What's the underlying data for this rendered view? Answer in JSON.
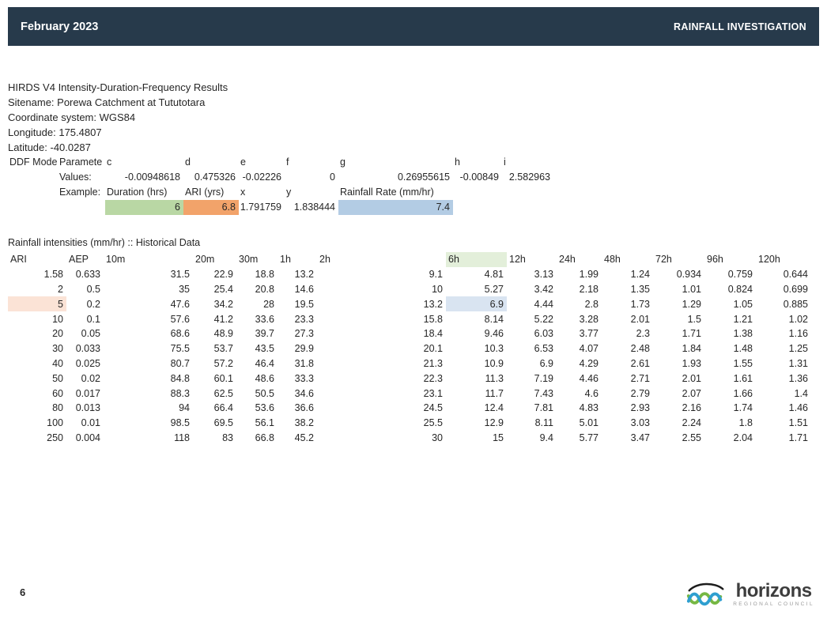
{
  "header": {
    "date": "February 2023",
    "title": "RAINFALL INVESTIGATION"
  },
  "info": {
    "lines": [
      "HIRDS V4 Intensity-Duration-Frequency Results",
      "Sitename: Porewa Catchment at Tututotara",
      "Coordinate system: WGS84",
      "Longitude: 175.4807",
      "Latitude: -40.0287"
    ]
  },
  "ddf": {
    "model_label": "DDF Mode",
    "parameter_label": "Paramete",
    "param_letters": [
      "c",
      "d",
      "e",
      "f",
      "g",
      "h",
      "i"
    ],
    "values_label": "Values:",
    "values": [
      "-0.00948618",
      "0.475326",
      "-0.02226",
      "0",
      "0.26955615",
      "-0.00849",
      "2.582963"
    ],
    "example_label": "Example:",
    "example_headers": [
      "Duration (hrs)",
      "ARI (yrs)",
      "x",
      "y",
      "Rainfall Rate (mm/hr)"
    ],
    "example": {
      "duration": "6",
      "ari": "6.8",
      "x": "1.791759",
      "y": "1.838444",
      "rate": "7.4"
    }
  },
  "table": {
    "title": "Rainfall intensities (mm/hr) :: Historical Data",
    "columns": [
      "ARI",
      "AEP",
      "10m",
      "20m",
      "30m",
      "1h",
      "2h",
      "6h",
      "12h",
      "24h",
      "48h",
      "72h",
      "96h",
      "120h"
    ],
    "rows": [
      [
        "1.58",
        "0.633",
        "31.5",
        "22.9",
        "18.8",
        "13.2",
        "9.1",
        "4.81",
        "3.13",
        "1.99",
        "1.24",
        "0.934",
        "0.759",
        "0.644"
      ],
      [
        "2",
        "0.5",
        "35",
        "25.4",
        "20.8",
        "14.6",
        "10",
        "5.27",
        "3.42",
        "2.18",
        "1.35",
        "1.01",
        "0.824",
        "0.699"
      ],
      [
        "5",
        "0.2",
        "47.6",
        "34.2",
        "28",
        "19.5",
        "13.2",
        "6.9",
        "4.44",
        "2.8",
        "1.73",
        "1.29",
        "1.05",
        "0.885"
      ],
      [
        "10",
        "0.1",
        "57.6",
        "41.2",
        "33.6",
        "23.3",
        "15.8",
        "8.14",
        "5.22",
        "3.28",
        "2.01",
        "1.5",
        "1.21",
        "1.02"
      ],
      [
        "20",
        "0.05",
        "68.6",
        "48.9",
        "39.7",
        "27.3",
        "18.4",
        "9.46",
        "6.03",
        "3.77",
        "2.3",
        "1.71",
        "1.38",
        "1.16"
      ],
      [
        "30",
        "0.033",
        "75.5",
        "53.7",
        "43.5",
        "29.9",
        "20.1",
        "10.3",
        "6.53",
        "4.07",
        "2.48",
        "1.84",
        "1.48",
        "1.25"
      ],
      [
        "40",
        "0.025",
        "80.7",
        "57.2",
        "46.4",
        "31.8",
        "21.3",
        "10.9",
        "6.9",
        "4.29",
        "2.61",
        "1.93",
        "1.55",
        "1.31"
      ],
      [
        "50",
        "0.02",
        "84.8",
        "60.1",
        "48.6",
        "33.3",
        "22.3",
        "11.3",
        "7.19",
        "4.46",
        "2.71",
        "2.01",
        "1.61",
        "1.36"
      ],
      [
        "60",
        "0.017",
        "88.3",
        "62.5",
        "50.5",
        "34.6",
        "23.1",
        "11.7",
        "7.43",
        "4.6",
        "2.79",
        "2.07",
        "1.66",
        "1.4"
      ],
      [
        "80",
        "0.013",
        "94",
        "66.4",
        "53.6",
        "36.6",
        "24.5",
        "12.4",
        "7.81",
        "4.83",
        "2.93",
        "2.16",
        "1.74",
        "1.46"
      ],
      [
        "100",
        "0.01",
        "98.5",
        "69.5",
        "56.1",
        "38.2",
        "25.5",
        "12.9",
        "8.11",
        "5.01",
        "3.03",
        "2.24",
        "1.8",
        "1.51"
      ],
      [
        "250",
        "0.004",
        "118",
        "83",
        "66.8",
        "45.2",
        "30",
        "15",
        "9.4",
        "5.77",
        "3.47",
        "2.55",
        "2.04",
        "1.71"
      ]
    ],
    "header_highlight": {
      "column": "6h",
      "color": "highlight_green"
    },
    "cell_highlights": [
      {
        "row": 2,
        "column": "ARI",
        "color": "highlight_orange"
      },
      {
        "row": 2,
        "column": "6h",
        "color": "highlight_blue"
      }
    ]
  },
  "footer": {
    "page_number": "6",
    "logo": {
      "word": "horizons",
      "subtitle": "REGIONAL COUNCIL"
    }
  },
  "colors": {
    "header_bar": "#273a4b",
    "highlight_green": "#e3efda",
    "highlight_orange": "#fbe3d6",
    "highlight_blue": "#d9e4f1",
    "example_green": "#b9d7a4",
    "example_orange": "#f2a36a",
    "example_blue": "#b3cce4",
    "logo_green": "#76b843",
    "logo_blue": "#2f9fd0",
    "logo_arc": "#1c1c1c"
  }
}
